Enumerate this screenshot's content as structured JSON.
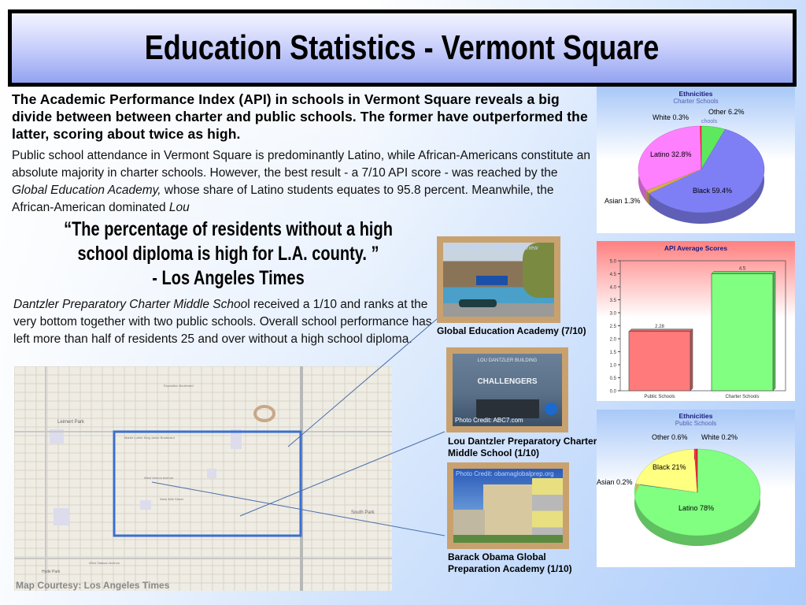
{
  "title": "Education Statistics - Vermont Square",
  "lead": "The Academic Performance Index (API) in schools in Vermont Square reveals a big divide between between charter and public schools. The former have outperformed the latter, scoring about twice as high.",
  "para1": {
    "a": "Public school attendance in Vermont Square is predominantly Latino, while African-Americans constitute an absolute majority in charter schools. However, the best result - a 7/10 API score - was reached by the ",
    "em": "Global Education Academy,",
    "b": " whose share of Latino students equates to  95.8 percent. Meanwhile, the African-American dominated ",
    "em2": "Lou"
  },
  "quote": {
    "line1": "“The percentage of  residents without a high",
    "line2": "school diploma is high for L.A. county. ”",
    "line3": "- Los Angeles Times"
  },
  "para2": {
    "em": "Dantzler Preparatory Charter Middle Schoo",
    "rest": "l received a 1/10 and ranks at the very bottom together with two public schools. Overall school performance has left more than half of residents 25 and over without a high school diploma."
  },
  "map": {
    "credit": "Map Courtesy: Los Angeles Times",
    "labels": [
      "Leimert Park",
      "Martin Luther King Junior Boulevard",
      "West Vernon Avenue",
      "West 48th Street",
      "South Park",
      "Hyde Park",
      "West Slauson Avenue",
      "Exposition Boulevard"
    ]
  },
  "photos": [
    {
      "credit": "Photo Credit: Google Street View",
      "caption": "Global Education Academy (7/10)"
    },
    {
      "credit": "Photo Credit: ABC7.com",
      "caption": "Lou Dantzler Preparatory Charter Middle School (1/10)",
      "sign": "LOU DANTZLER BUILDING",
      "sign2": "CHALLENGERS"
    },
    {
      "credit": "Photo Credit: obamaglobalprep.org",
      "caption": "Barack Obama Global Preparation Academy (1/10)"
    }
  ],
  "chart_data": [
    {
      "type": "pie",
      "title": "Ethnicities",
      "subtitle": "Charter Schools",
      "slices": [
        {
          "label": "Other 6.2%",
          "value": 6.2,
          "color": "#5ee85e"
        },
        {
          "label": "Black 59.4%",
          "value": 59.4,
          "color": "#7f7ff5"
        },
        {
          "label": "Asian 1.3%",
          "value": 1.3,
          "color": "#d8b040"
        },
        {
          "label": "Latino 32.8%",
          "value": 32.8,
          "color": "#ff80ff"
        },
        {
          "label": "White 0.3%",
          "value": 0.3,
          "color": "#ff3030"
        }
      ],
      "overlay_text": "chools"
    },
    {
      "type": "bar",
      "title": "API Average Scores",
      "categories": [
        "Public Schools",
        "Charter Schools"
      ],
      "values": [
        2.28,
        4.5
      ],
      "value_labels": [
        "2.28",
        "4.5"
      ],
      "colors": [
        "#ff7a7a",
        "#80ff80"
      ],
      "ylim": [
        0,
        5
      ],
      "yticks": [
        "0.0",
        "0.5",
        "1.0",
        "1.5",
        "2.0",
        "2.5",
        "3.0",
        "3.5",
        "4.0",
        "4.5",
        "5.0"
      ]
    },
    {
      "type": "pie",
      "title": "Ethnicities",
      "subtitle": "Public Schools",
      "slices": [
        {
          "label": "Latino 78%",
          "value": 78,
          "color": "#80ff80"
        },
        {
          "label": "Asian 0.2%",
          "value": 0.2,
          "color": "#3080c0"
        },
        {
          "label": "Black 21%",
          "value": 21,
          "color": "#ffff80"
        },
        {
          "label": "Other 0.6%",
          "value": 0.6,
          "color": "#ff3050"
        },
        {
          "label": "White 0.2%",
          "value": 0.2,
          "color": "#e02020"
        }
      ]
    }
  ]
}
